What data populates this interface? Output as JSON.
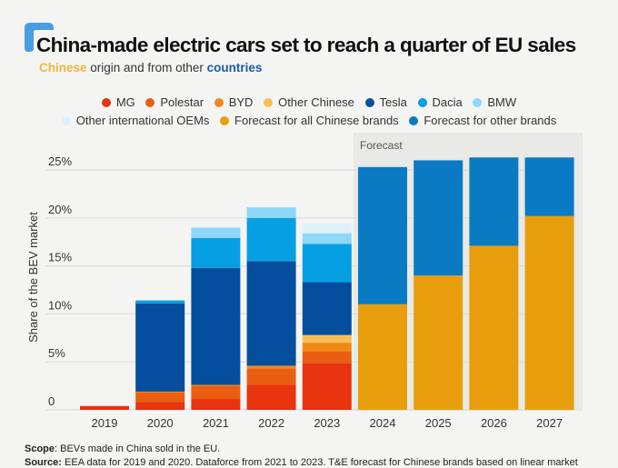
{
  "header": {
    "title": "China-made electric cars set to reach a quarter of EU sales",
    "subtitle_prefix": "Chinese",
    "subtitle_middle": " origin and from other ",
    "subtitle_suffix": "countries",
    "brand_color": "#4a9de0"
  },
  "legend": {
    "rows": [
      [
        {
          "label": "MG",
          "color": "#e8340f"
        },
        {
          "label": "Polestar",
          "color": "#ea5e12"
        },
        {
          "label": "BYD",
          "color": "#ef8a17"
        },
        {
          "label": "Other Chinese",
          "color": "#f7bf55"
        },
        {
          "label": "Tesla",
          "color": "#054e9e"
        },
        {
          "label": "Dacia",
          "color": "#069fe3"
        },
        {
          "label": "BMW",
          "color": "#8ed7f8"
        }
      ],
      [
        {
          "label": "Other international OEMs",
          "color": "#ddf1fb"
        },
        {
          "label": "Forecast for all Chinese brands",
          "color": "#e89e0c"
        },
        {
          "label": "Forecast for other brands",
          "color": "#0a7ac3"
        }
      ]
    ]
  },
  "chart_data": {
    "type": "bar",
    "stacked": true,
    "title": "China-made electric cars set to reach a quarter of EU sales",
    "subtitle": "Chinese origin and from other countries",
    "xlabel": "",
    "ylabel": "Share of the BEV market",
    "ylim": [
      0,
      25
    ],
    "yticks": [
      0,
      5,
      10,
      15,
      20,
      25
    ],
    "ytick_labels": [
      "0",
      "5%",
      "10%",
      "15%",
      "20%",
      "25%"
    ],
    "grid": true,
    "legend_position": "top",
    "categories": [
      "2019",
      "2020",
      "2021",
      "2022",
      "2023",
      "2024",
      "2025",
      "2026",
      "2027"
    ],
    "forecast_region": {
      "label": "Forecast",
      "categories": [
        "2024",
        "2025",
        "2026",
        "2027"
      ]
    },
    "series": [
      {
        "name": "MG",
        "color": "#e8340f",
        "values": [
          0.4,
          0.8,
          1.2,
          2.6,
          4.9,
          0,
          0,
          0,
          0
        ]
      },
      {
        "name": "Polestar",
        "color": "#ea5e12",
        "values": [
          0,
          1.0,
          1.3,
          1.7,
          1.2,
          0,
          0,
          0,
          0
        ]
      },
      {
        "name": "BYD",
        "color": "#ef8a17",
        "values": [
          0,
          0.1,
          0.1,
          0.3,
          0.9,
          0,
          0,
          0,
          0
        ]
      },
      {
        "name": "Other Chinese",
        "color": "#f7bf55",
        "values": [
          0,
          0,
          0,
          0,
          0.8,
          0,
          0,
          0,
          0
        ]
      },
      {
        "name": "Tesla",
        "color": "#054e9e",
        "values": [
          0,
          9.2,
          12.2,
          10.9,
          5.5,
          0,
          0,
          0,
          0
        ]
      },
      {
        "name": "Dacia",
        "color": "#069fe3",
        "values": [
          0,
          0.3,
          3.1,
          4.5,
          4.0,
          0,
          0,
          0,
          0
        ]
      },
      {
        "name": "BMW",
        "color": "#8ed7f8",
        "values": [
          0,
          0,
          1.1,
          1.1,
          1.1,
          0,
          0,
          0,
          0
        ]
      },
      {
        "name": "Other international OEMs",
        "color": "#ddf1fb",
        "values": [
          0,
          0,
          0,
          0,
          1.0,
          0,
          0,
          0,
          0
        ]
      },
      {
        "name": "Forecast for all Chinese brands",
        "color": "#e89e0c",
        "values": [
          0,
          0,
          0,
          0,
          0,
          11.0,
          14.0,
          17.1,
          20.2
        ]
      },
      {
        "name": "Forecast for other brands",
        "color": "#0a7ac3",
        "values": [
          0,
          0,
          0,
          0,
          0,
          14.3,
          12.0,
          9.2,
          6.1
        ]
      }
    ]
  },
  "footer": {
    "scope_label": "Scope",
    "scope_text": ": BEVs made in China sold in the EU.",
    "source_label": "Source:",
    "source_text": " EEA data for 2019 and 2020. Dataforce from 2021 to 2023. T&E forecast for Chinese brands based on linear market"
  }
}
